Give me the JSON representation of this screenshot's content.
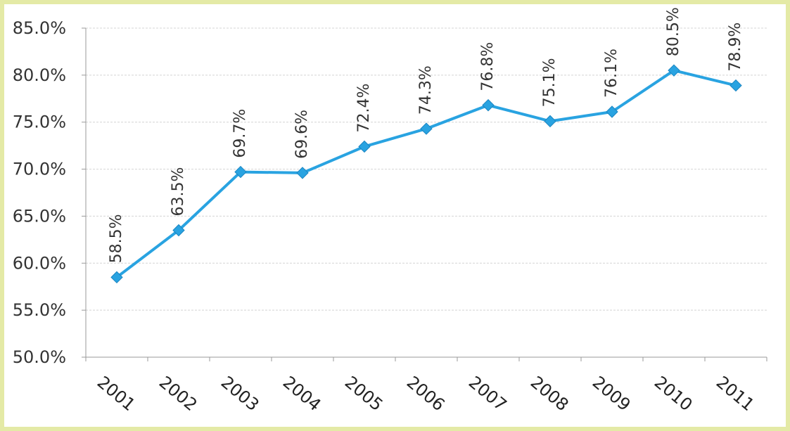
{
  "chart_data": {
    "type": "line",
    "title": "",
    "xlabel": "",
    "ylabel": "",
    "categories": [
      "2001",
      "2002",
      "2003",
      "2004",
      "2005",
      "2006",
      "2007",
      "2008",
      "2009",
      "2010",
      "2011"
    ],
    "series": [
      {
        "values": [
          58.5,
          63.5,
          69.7,
          69.6,
          72.4,
          74.3,
          76.8,
          75.1,
          76.1,
          80.5,
          78.9
        ],
        "data_labels": [
          "58.5%",
          "63.5%",
          "69.7%",
          "69.6%",
          "72.4%",
          "74.3%",
          "76.8%",
          "75.1%",
          "76.1%",
          "80.5%",
          "78.9%"
        ],
        "color": "#29a3e1",
        "marker": "diamond"
      }
    ],
    "ylim": [
      50,
      85
    ],
    "yticks": [
      50,
      55,
      60,
      65,
      70,
      75,
      80,
      85
    ],
    "ytick_labels": [
      "50.0%",
      "55.0%",
      "60.0%",
      "65.0%",
      "70.0%",
      "75.0%",
      "80.0%",
      "85.0%"
    ],
    "grid": true,
    "legend": "none"
  }
}
